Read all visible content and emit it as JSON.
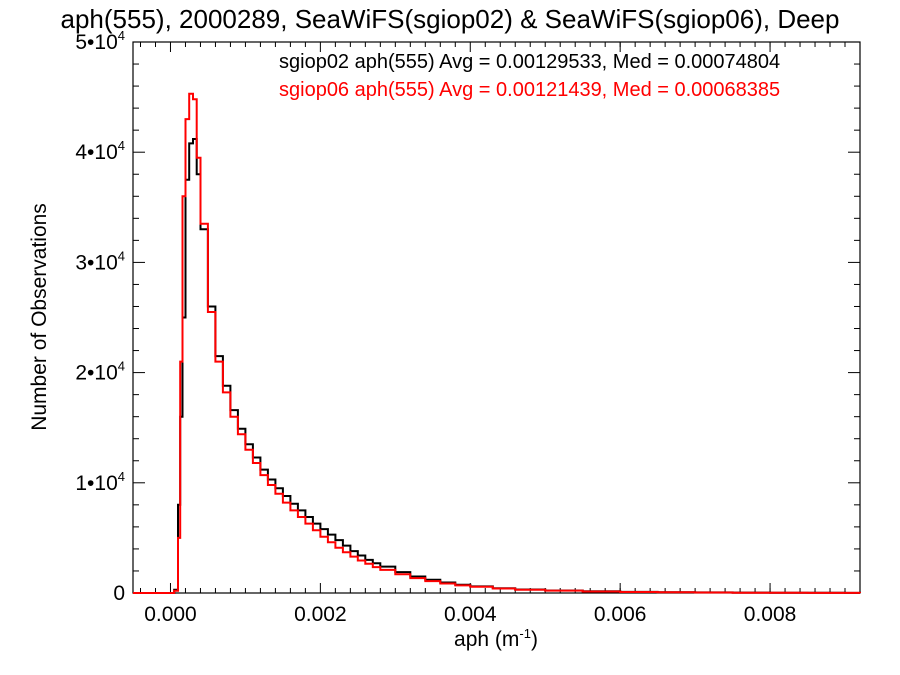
{
  "chart_data": {
    "type": "line",
    "title": "aph(555), 2000289, SeaWiFS(sgiop02) & SeaWiFS(sgiop06), Deep",
    "xlabel": "aph (m",
    "xlabel_sup": "-1",
    "xlabel_suffix": ")",
    "ylabel": "Number of Observations",
    "xlim": [
      -0.0005,
      0.0092
    ],
    "ylim": [
      0,
      50000
    ],
    "grid": false,
    "legend_position": "top-right",
    "x_ticks": [
      {
        "value": 0.0,
        "label": "0.000"
      },
      {
        "value": 0.002,
        "label": "0.002"
      },
      {
        "value": 0.004,
        "label": "0.004"
      },
      {
        "value": 0.006,
        "label": "0.006"
      },
      {
        "value": 0.008,
        "label": "0.008"
      }
    ],
    "y_ticks": [
      {
        "value": 0,
        "base": "0",
        "exp": ""
      },
      {
        "value": 10000,
        "base": "1•10",
        "exp": "4"
      },
      {
        "value": 20000,
        "base": "2•10",
        "exp": "4"
      },
      {
        "value": 30000,
        "base": "3•10",
        "exp": "4"
      },
      {
        "value": 40000,
        "base": "4•10",
        "exp": "4"
      },
      {
        "value": 50000,
        "base": "5•10",
        "exp": "4"
      }
    ],
    "series": [
      {
        "name": "sgiop02 aph(555) Avg = 0.00129533, Med = 0.00074804",
        "color": "#000000",
        "x": [
          -0.0005,
          0.0,
          5e-05,
          0.0001,
          0.00013,
          0.00016,
          0.0002,
          0.00025,
          0.0003,
          0.00035,
          0.0004,
          0.0005,
          0.0006,
          0.0007,
          0.0008,
          0.0009,
          0.001,
          0.0011,
          0.0012,
          0.0013,
          0.0014,
          0.0015,
          0.0016,
          0.0017,
          0.0018,
          0.0019,
          0.002,
          0.0021,
          0.0022,
          0.0023,
          0.0024,
          0.0025,
          0.0026,
          0.0027,
          0.0028,
          0.003,
          0.0032,
          0.0034,
          0.0036,
          0.0038,
          0.004,
          0.0043,
          0.0046,
          0.005,
          0.0055,
          0.006,
          0.0065,
          0.007,
          0.0075,
          0.008,
          0.0085,
          0.009,
          0.0092
        ],
        "y": [
          0,
          0,
          300,
          8000,
          16000,
          25000,
          37500,
          40800,
          41200,
          38000,
          33000,
          26000,
          21500,
          18800,
          16600,
          14900,
          13500,
          12300,
          11200,
          10300,
          9500,
          8800,
          8100,
          7500,
          6900,
          6300,
          5800,
          5300,
          4800,
          4300,
          3800,
          3400,
          3000,
          2700,
          2400,
          1900,
          1500,
          1200,
          950,
          750,
          600,
          430,
          320,
          230,
          150,
          100,
          70,
          50,
          35,
          25,
          15,
          10,
          0
        ]
      },
      {
        "name": "sgiop06 aph(555) Avg = 0.00121439, Med = 0.00068385",
        "color": "#ff0000",
        "x": [
          -0.0005,
          0.0,
          5e-05,
          0.0001,
          0.00013,
          0.00016,
          0.0002,
          0.00025,
          0.0003,
          0.00035,
          0.0004,
          0.0005,
          0.0006,
          0.0007,
          0.0008,
          0.0009,
          0.001,
          0.0011,
          0.0012,
          0.0013,
          0.0014,
          0.0015,
          0.0016,
          0.0017,
          0.0018,
          0.0019,
          0.002,
          0.0021,
          0.0022,
          0.0023,
          0.0024,
          0.0025,
          0.0026,
          0.0027,
          0.0028,
          0.003,
          0.0032,
          0.0034,
          0.0036,
          0.0038,
          0.004,
          0.0043,
          0.0046,
          0.005,
          0.0055,
          0.006,
          0.0065,
          0.007,
          0.0075,
          0.008,
          0.0085,
          0.009,
          0.0092
        ],
        "y": [
          0,
          0,
          200,
          5000,
          21000,
          36000,
          43000,
          45300,
          44800,
          39500,
          33500,
          25500,
          21000,
          18200,
          16000,
          14400,
          13000,
          11800,
          10700,
          9800,
          9000,
          8200,
          7500,
          6900,
          6300,
          5700,
          5100,
          4600,
          4100,
          3700,
          3300,
          2950,
          2650,
          2350,
          2100,
          1700,
          1350,
          1080,
          860,
          690,
          560,
          410,
          300,
          215,
          140,
          95,
          65,
          45,
          30,
          20,
          12,
          8,
          0
        ]
      }
    ]
  }
}
